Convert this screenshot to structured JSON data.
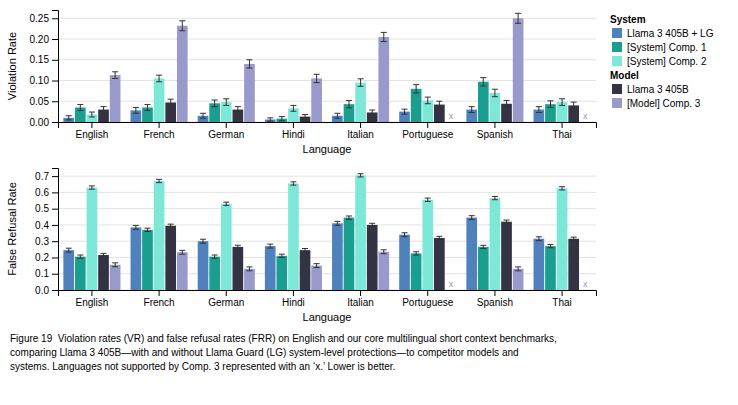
{
  "chart_data": [
    {
      "type": "bar",
      "categories": [
        "English",
        "French",
        "German",
        "Hindi",
        "Italian",
        "Portuguese",
        "Spanish",
        "Thai"
      ],
      "x_label": "Language",
      "y_label": "Violation Rate",
      "ylim": [
        0,
        0.27
      ],
      "yticks": [
        {
          "value": 0,
          "label": "0.00"
        },
        0.05,
        {
          "value": 0.1,
          "label": "0.10"
        },
        0.15,
        {
          "value": 0.2,
          "label": "0.20"
        },
        0.25
      ],
      "grid": true,
      "legend": "right",
      "series": [
        {
          "name": "Llama 3 405B + LG",
          "group": "System",
          "color": "#4f81bd",
          "values": [
            0.01,
            0.028,
            0.015,
            0.006,
            0.015,
            0.025,
            0.03,
            0.03
          ],
          "errors": [
            0.005,
            0.007,
            0.006,
            0.004,
            0.006,
            0.006,
            0.007,
            0.007
          ]
        },
        {
          "name": "[System] Comp. 1",
          "group": "System",
          "color": "#1a9e8f",
          "values": [
            0.035,
            0.035,
            0.045,
            0.008,
            0.043,
            0.08,
            0.097,
            0.043
          ],
          "errors": [
            0.007,
            0.007,
            0.008,
            0.005,
            0.009,
            0.01,
            0.01,
            0.008
          ]
        },
        {
          "name": "[System] Comp. 2",
          "group": "System",
          "color": "#7de8d8",
          "values": [
            0.018,
            0.105,
            0.048,
            0.033,
            0.095,
            0.052,
            0.07,
            0.048
          ],
          "errors": [
            0.006,
            0.008,
            0.008,
            0.007,
            0.009,
            0.008,
            0.009,
            0.008
          ]
        },
        {
          "name": "Llama 3 405B",
          "group": "Model",
          "color": "#333344",
          "values": [
            0.03,
            0.047,
            0.03,
            0.013,
            0.023,
            0.042,
            0.044,
            0.04
          ],
          "errors": [
            0.007,
            0.008,
            0.007,
            0.005,
            0.006,
            0.008,
            0.008,
            0.008
          ]
        },
        {
          "name": "[Model] Comp. 3",
          "group": "Model",
          "color": "#9999cc",
          "values": [
            0.113,
            0.232,
            0.14,
            0.105,
            0.205,
            null,
            0.25,
            null
          ],
          "errors": [
            0.008,
            0.012,
            0.01,
            0.01,
            0.011,
            null,
            0.012,
            null
          ],
          "value_labels": [
            null,
            null,
            null,
            null,
            null,
            "x",
            null,
            "x"
          ]
        }
      ]
    },
    {
      "type": "bar",
      "categories": [
        "English",
        "French",
        "German",
        "Hindi",
        "Italian",
        "Portuguese",
        "Spanish",
        "Thai"
      ],
      "x_label": "Language",
      "y_label": "False Refusal Rate",
      "ylim": [
        0,
        0.75
      ],
      "yticks": [
        {
          "value": 0,
          "label": "0.0"
        },
        0.1,
        0.2,
        0.3,
        0.4,
        0.5,
        0.6,
        0.7
      ],
      "grid": true,
      "series": [
        {
          "color": "#4f81bd",
          "values": [
            0.245,
            0.385,
            0.3,
            0.27,
            0.41,
            0.34,
            0.445,
            0.315
          ],
          "errors": [
            0.012,
            0.012,
            0.012,
            0.012,
            0.012,
            0.012,
            0.012,
            0.012
          ]
        },
        {
          "color": "#1a9e8f",
          "values": [
            0.205,
            0.37,
            0.205,
            0.21,
            0.445,
            0.225,
            0.265,
            0.27
          ],
          "errors": [
            0.01,
            0.01,
            0.01,
            0.01,
            0.01,
            0.01,
            0.01,
            0.01
          ]
        },
        {
          "color": "#7de8d8",
          "values": [
            0.63,
            0.67,
            0.53,
            0.655,
            0.705,
            0.555,
            0.565,
            0.625
          ],
          "errors": [
            0.01,
            0.01,
            0.01,
            0.01,
            0.01,
            0.01,
            0.01,
            0.01
          ]
        },
        {
          "color": "#333344",
          "values": [
            0.215,
            0.395,
            0.265,
            0.245,
            0.4,
            0.32,
            0.42,
            0.315
          ],
          "errors": [
            0.01,
            0.01,
            0.01,
            0.01,
            0.01,
            0.01,
            0.01,
            0.01
          ]
        },
        {
          "color": "#9999cc",
          "values": [
            0.155,
            0.232,
            0.13,
            0.15,
            0.235,
            null,
            0.13,
            null
          ],
          "errors": [
            0.012,
            0.012,
            0.012,
            0.012,
            0.012,
            null,
            0.012,
            null
          ],
          "value_labels": [
            null,
            null,
            null,
            null,
            null,
            "x",
            null,
            "x"
          ]
        }
      ],
      "annotations": [
        "Figure 19  Violation rates (VR) and false refusal rates (FRR) on English and our core multilingual short context benchmarks,",
        "comparing Llama 3 405B—with and without Llama Guard (LG) system-level protections—to competitor models and",
        "systems. Languages not supported by Comp. 3 represented with an ‘x.’ Lower is better."
      ]
    }
  ]
}
